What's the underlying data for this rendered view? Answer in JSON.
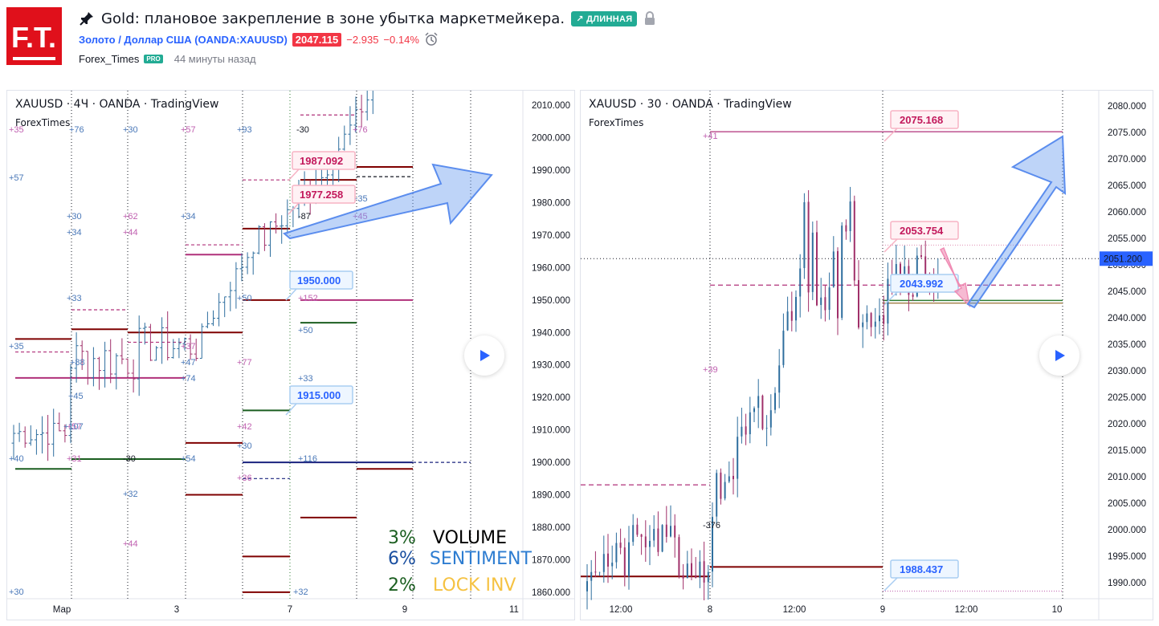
{
  "header": {
    "logo_text": "F.T.",
    "title": "Gold: плановое закрепление в зоне убытка маркетмейкера.",
    "direction_badge": "↗ ДЛИННАЯ",
    "symbol_link": "Золото / Доллар США (OANDA:XAUUSD)",
    "price": "2047.115",
    "change": "−2.935",
    "change_pct": "−0.14%",
    "author": "Forex_Times",
    "author_badge": "PRO",
    "published": "44 минуты назад",
    "icons": [
      "pin-icon",
      "lock-icon",
      "alarm-clock-icon"
    ],
    "colors": {
      "accent": "#2962ff",
      "negative": "#f23645",
      "long": "#22ab94",
      "logo": "#e0101b"
    }
  },
  "chart_data": [
    {
      "type": "candlestick",
      "symbol": "XAUUSD",
      "interval": "4Ч",
      "exchange": "OANDA",
      "header": "XAUUSD · 4Ч · OANDA · TradingView",
      "brand": "ForexTimes",
      "ylim": [
        1858,
        2013
      ],
      "y_ticks": [
        "2010.000",
        "2000.000",
        "1990.000",
        "1980.000",
        "1970.000",
        "1960.000",
        "1950.000",
        "1940.000",
        "1930.000",
        "1920.000",
        "1910.000",
        "1900.000",
        "1890.000",
        "1880.000",
        "1870.000",
        "1860.000"
      ],
      "x_ticks": [
        "Мар",
        "3",
        "7",
        "9",
        "11"
      ],
      "callouts": [
        "1987.092",
        "1977.258",
        "1950.000",
        "1915.000"
      ],
      "markers": [
        "+35",
        "+76",
        "+30",
        "+57",
        "+93",
        "-30",
        "+76",
        "+57",
        "+30",
        "+62",
        "+34",
        "+34",
        "+44",
        "-87",
        "+35",
        "+45",
        "+33",
        "+50",
        "+152",
        "+35",
        "+88",
        "+37",
        "+47",
        "+74",
        "+77",
        "+50",
        "+45",
        "+57",
        "+33",
        "+107",
        "+42",
        "+30",
        "+40",
        "+31",
        "-30",
        "+54",
        "+36",
        "+116",
        "+32",
        "+44",
        "+30",
        "+32"
      ],
      "stats": [
        {
          "value": "3%",
          "label": "VOLUME",
          "color": "#1b5e20",
          "label_color": "#000000"
        },
        {
          "value": "6%",
          "label": "SENTIMENT",
          "color": "#1a4fa0",
          "label_color": "#2e7dd1"
        },
        {
          "value": "2%",
          "label": "LOCK INV",
          "color": "#1b5e20",
          "label_color": "#f5c242"
        }
      ]
    },
    {
      "type": "candlestick",
      "symbol": "XAUUSD",
      "interval": "30",
      "exchange": "OANDA",
      "header": "XAUUSD · 30 · OANDA · TradingView",
      "brand": "ForexTimes",
      "ylim": [
        1987,
        2082
      ],
      "y_ticks": [
        "2080.000",
        "2075.000",
        "2070.000",
        "2065.000",
        "2060.000",
        "2055.000",
        "2050.000",
        "2045.000",
        "2040.000",
        "2035.000",
        "2030.000",
        "2025.000",
        "2020.000",
        "2015.000",
        "2010.000",
        "2005.000",
        "2000.000",
        "1995.000",
        "1990.000"
      ],
      "x_ticks": [
        "12:00",
        "8",
        "12:00",
        "9",
        "12:00",
        "10"
      ],
      "last_price": "2051.200",
      "callouts": [
        "2075.168",
        "2053.754",
        "2043.992",
        "1988.437"
      ],
      "markers": [
        "+41",
        "+39",
        "-376"
      ]
    }
  ]
}
